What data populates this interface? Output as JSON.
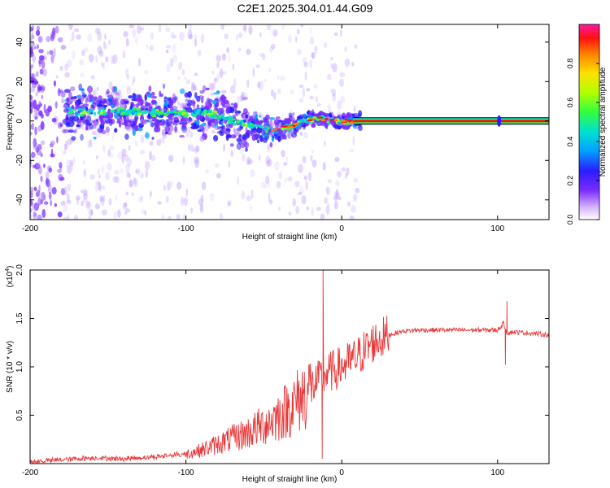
{
  "title": "C2E1.2025.304.01.44.G09",
  "colors": {
    "snr_line": "#e8383a",
    "axis": "#000000",
    "ridge": "#ff2020"
  },
  "chart_data": [
    {
      "type": "heatmap",
      "name": "spectrogram",
      "xlabel": "Height of straight line (km)",
      "ylabel": "Frequency (Hz)",
      "xlim": [
        -200,
        133
      ],
      "ylim": [
        -50,
        49
      ],
      "xticks": [
        -200,
        -100,
        0,
        100
      ],
      "yticks": [
        -40,
        -20,
        0,
        20,
        40
      ],
      "xtick_labels": [
        "-200",
        "-100",
        "0",
        "100"
      ],
      "ytick_labels": [
        "-40",
        "-20",
        "0",
        "20",
        "40"
      ],
      "ridge": {
        "x": [
          -175,
          -160,
          -140,
          -120,
          -100,
          -90,
          -80,
          -70,
          -60,
          -50,
          -45,
          -40,
          -35,
          -30,
          -25,
          -20,
          -10,
          0,
          10,
          133
        ],
        "freq": [
          5,
          4,
          5,
          4,
          4,
          4,
          3,
          0,
          -2,
          -4,
          -5,
          -4,
          -3,
          -2,
          0,
          1,
          1,
          0,
          0,
          0
        ]
      },
      "colorbar": {
        "label": "Normalized spectral amplitude",
        "range": [
          0,
          1
        ],
        "ticks": [
          0.0,
          0.2,
          0.4,
          0.6,
          0.8
        ],
        "tick_labels": [
          "0.0",
          "0.2",
          "0.4",
          "0.6",
          "0.8"
        ]
      }
    },
    {
      "type": "line",
      "name": "snr",
      "xlabel": "Height of straight line (km)",
      "ylabel": "SNR (10 * v/v)",
      "yscale_label": "(x10",
      "yscale_exp": "4",
      "yscale_close": ")",
      "xlim": [
        -200,
        133
      ],
      "ylim": [
        0,
        2.0
      ],
      "xticks": [
        -200,
        -100,
        0,
        100
      ],
      "yticks": [
        0.5,
        1.0,
        1.5,
        2.0
      ],
      "xtick_labels": [
        "-200",
        "-100",
        "0",
        "100"
      ],
      "ytick_labels": [
        "0.5",
        "1.0",
        "1.5",
        "2.0"
      ],
      "series": [
        {
          "name": "SNR",
          "x": [
            -200,
            -180,
            -160,
            -140,
            -120,
            -100,
            -90,
            -80,
            -70,
            -60,
            -50,
            -40,
            -30,
            -20,
            -15,
            -10,
            0,
            10,
            20,
            30,
            40,
            50,
            60,
            70,
            80,
            90,
            100,
            104,
            106,
            110,
            120,
            133
          ],
          "y": [
            0.02,
            0.04,
            0.06,
            0.05,
            0.07,
            0.1,
            0.14,
            0.2,
            0.26,
            0.32,
            0.4,
            0.5,
            0.62,
            0.78,
            0.85,
            0.93,
            1.0,
            1.1,
            1.25,
            1.33,
            1.37,
            1.38,
            1.38,
            1.38,
            1.38,
            1.38,
            1.38,
            1.45,
            1.35,
            1.36,
            1.35,
            1.33
          ]
        }
      ],
      "spikes": [
        {
          "x": -12,
          "y": 2.0
        },
        {
          "x": -12.5,
          "y": 0.05
        },
        {
          "x": 106,
          "y": 1.68
        },
        {
          "x": 105,
          "y": 1.02
        }
      ]
    }
  ]
}
